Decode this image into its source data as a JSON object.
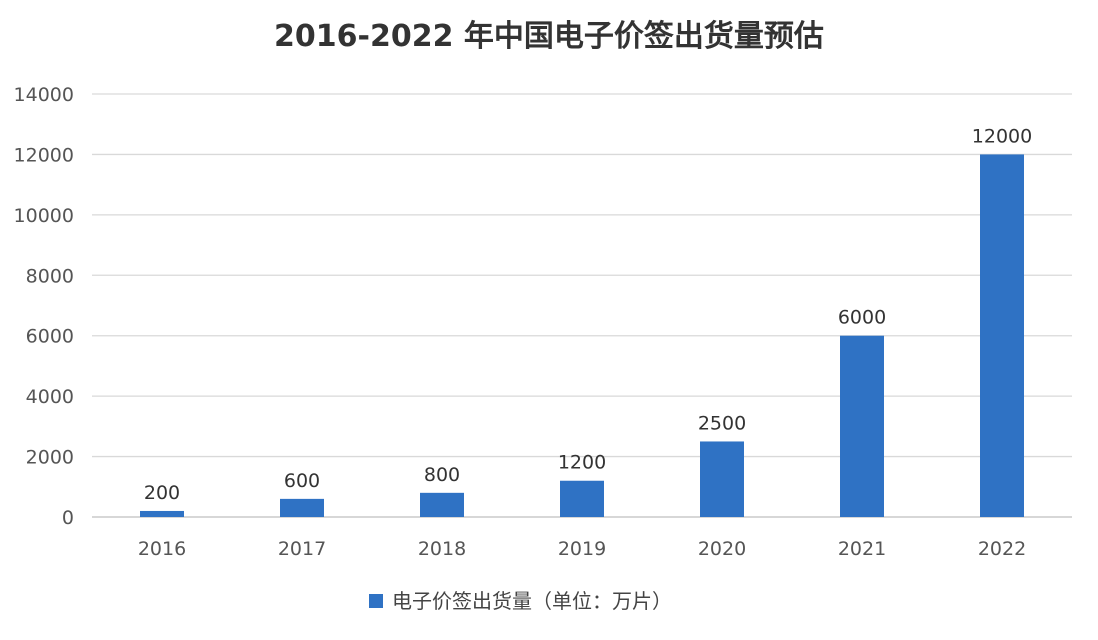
{
  "chart_data": {
    "type": "bar",
    "title": "2016-2022 年中国电子价签出货量预估",
    "xlabel": "",
    "ylabel": "",
    "categories": [
      "2016",
      "2017",
      "2018",
      "2019",
      "2020",
      "2021",
      "2022"
    ],
    "series": [
      {
        "name": "电子价签出货量（单位：万片）",
        "values": [
          200,
          600,
          800,
          1200,
          2500,
          6000,
          12000
        ],
        "data_labels": [
          "200",
          "600",
          "800",
          "1200",
          "2500",
          "6000",
          "12000"
        ],
        "color": "#2f72c4"
      }
    ],
    "ylim": [
      0,
      14000
    ],
    "yticks": [
      "0",
      "2000",
      "4000",
      "6000",
      "8000",
      "10000",
      "12000",
      "14000"
    ],
    "grid": true,
    "legend_position": "bottom-center"
  }
}
